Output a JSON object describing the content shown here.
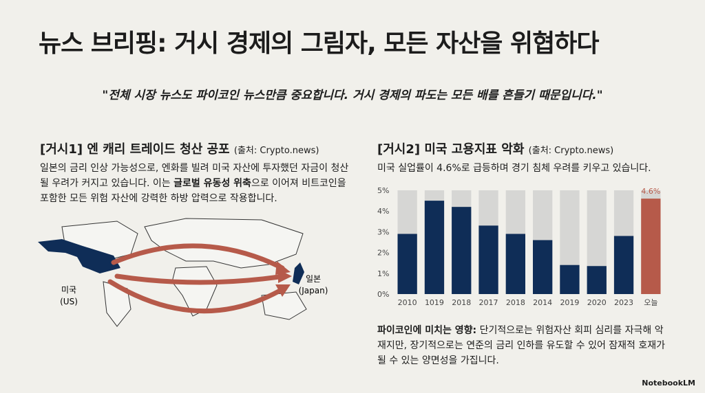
{
  "header": {
    "title": "뉴스 브리핑: 거시 경제의 그림자, 모든 자산을 위협하다"
  },
  "quote": "\"전체 시장 뉴스도 파이코인 뉴스만큼 중요합니다. 거시 경제의 파도는 모든 배를 흔들기 때문입니다.\"",
  "left": {
    "heading": "[거시1] 엔 캐리 트레이드 청산 공포",
    "source": "(출처: Crypto.news)",
    "body": [
      "일본의 금리 인상 가능성으로, 엔화를 빌려 미국 자산에 투자했던 자금이 청산될 우려가 커지고 있습니다. 이는 ",
      "글로벌 유동성 위축",
      "으로 이어져 비트코인을 포함한 모든 위험 자산에 강력한 하방 압력으로 작용합니다."
    ],
    "map_labels": {
      "us": [
        "미국",
        "(US)"
      ],
      "japan": [
        "일본",
        "(Japan)"
      ]
    }
  },
  "right": {
    "heading": "[거시2] 미국 고용지표 악화",
    "source": "(출처: Crypto.news)",
    "subtitle": "미국 실업률이 4.6%로 급등하며 경기 침체 우려를 키우고 있습니다.",
    "impact": [
      "파이코인에 미치는 영향:",
      " 단기적으로는 위험자산 회피 심리를 자극해 악재지만, 장기적으로는 연준의 금리 인하를 유도할 수 있어 잠재적 호재가 될 수 있는 양면성을 가집니다."
    ]
  },
  "chart_data": {
    "type": "bar",
    "categories": [
      "2010",
      "1019",
      "2018",
      "2017",
      "2018",
      "2014",
      "2019",
      "2020",
      "2023",
      "오늘"
    ],
    "values": [
      2.9,
      4.5,
      4.2,
      3.3,
      2.9,
      2.6,
      1.4,
      1.35,
      2.8,
      4.6
    ],
    "value_labels": [
      null,
      null,
      null,
      null,
      null,
      null,
      null,
      null,
      null,
      "4.6%"
    ],
    "colors": [
      "#0f2d57",
      "#0f2d57",
      "#0f2d57",
      "#0f2d57",
      "#0f2d57",
      "#0f2d57",
      "#0f2d57",
      "#0f2d57",
      "#0f2d57",
      "#b65a4a"
    ],
    "ylim": [
      0,
      5
    ],
    "yticks": [
      {
        "value": 0,
        "label": "0%"
      },
      {
        "value": 1,
        "label": "1%"
      },
      {
        "value": 2,
        "label": "2%"
      },
      {
        "value": 3,
        "label": "3%"
      },
      {
        "value": 4,
        "label": "4%"
      },
      {
        "value": 5,
        "label": "5%"
      }
    ]
  },
  "footer": {
    "logo": "NotebookLM"
  }
}
